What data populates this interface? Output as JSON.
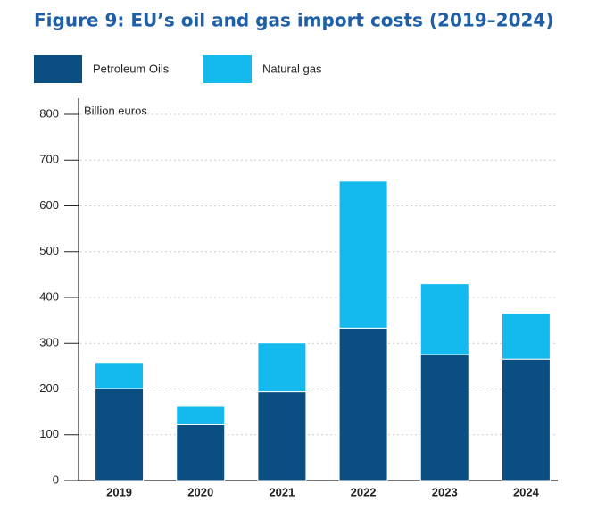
{
  "chart_data": {
    "type": "stacked_bar",
    "title": "Figure 9: EU’s oil and gas import costs (2019–2024)",
    "y_label": "Billion euros",
    "categories": [
      "2019",
      "2020",
      "2021",
      "2022",
      "2023",
      "2024"
    ],
    "series": [
      {
        "name": "Petroleum Oils",
        "color": "#0b4f82",
        "values": [
          201,
          122,
          194,
          333,
          275,
          265
        ]
      },
      {
        "name": "Natural gas",
        "color": "#14b9ee",
        "values": [
          57,
          40,
          107,
          321,
          155,
          100
        ]
      }
    ],
    "ylim": [
      0,
      800
    ],
    "yticks": [
      0,
      100,
      200,
      300,
      400,
      500,
      600,
      700,
      800
    ],
    "grid": true
  }
}
